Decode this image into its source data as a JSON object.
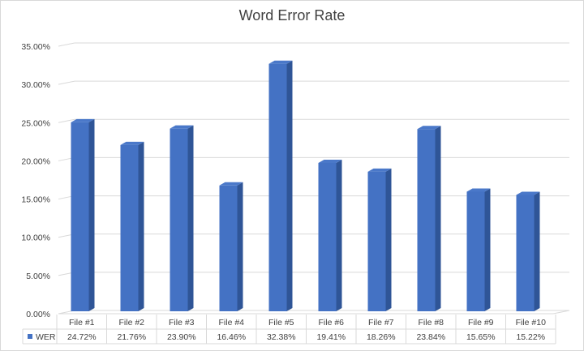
{
  "chart_data": {
    "type": "bar",
    "title": "Word Error Rate",
    "categories": [
      "File #1",
      "File #2",
      "File #3",
      "File #4",
      "File #5",
      "File #6",
      "File #7",
      "File #8",
      "File #9",
      "File #10"
    ],
    "series": [
      {
        "name": "WER",
        "values": [
          24.72,
          21.76,
          23.9,
          16.46,
          32.38,
          19.41,
          18.26,
          23.84,
          15.65,
          15.22
        ],
        "value_labels": [
          "24.72%",
          "21.76%",
          "23.90%",
          "16.46%",
          "32.38%",
          "19.41%",
          "18.26%",
          "23.84%",
          "15.65%",
          "15.22%"
        ],
        "color": "#4472c4"
      }
    ],
    "ylim": [
      0,
      35
    ],
    "yticks": [
      0,
      5,
      10,
      15,
      20,
      25,
      30,
      35
    ],
    "ytick_labels": [
      "0.00%",
      "5.00%",
      "10.00%",
      "15.00%",
      "20.00%",
      "25.00%",
      "30.00%",
      "35.00%"
    ],
    "xlabel": "",
    "ylabel": "",
    "grid": true,
    "data_table": true,
    "style": "3d-column"
  },
  "colors": {
    "bar_front": "#4472c4",
    "bar_side": "#2f5597",
    "bar_top": "#4a78c9",
    "grid": "#d9d9d9",
    "text": "#404040"
  }
}
